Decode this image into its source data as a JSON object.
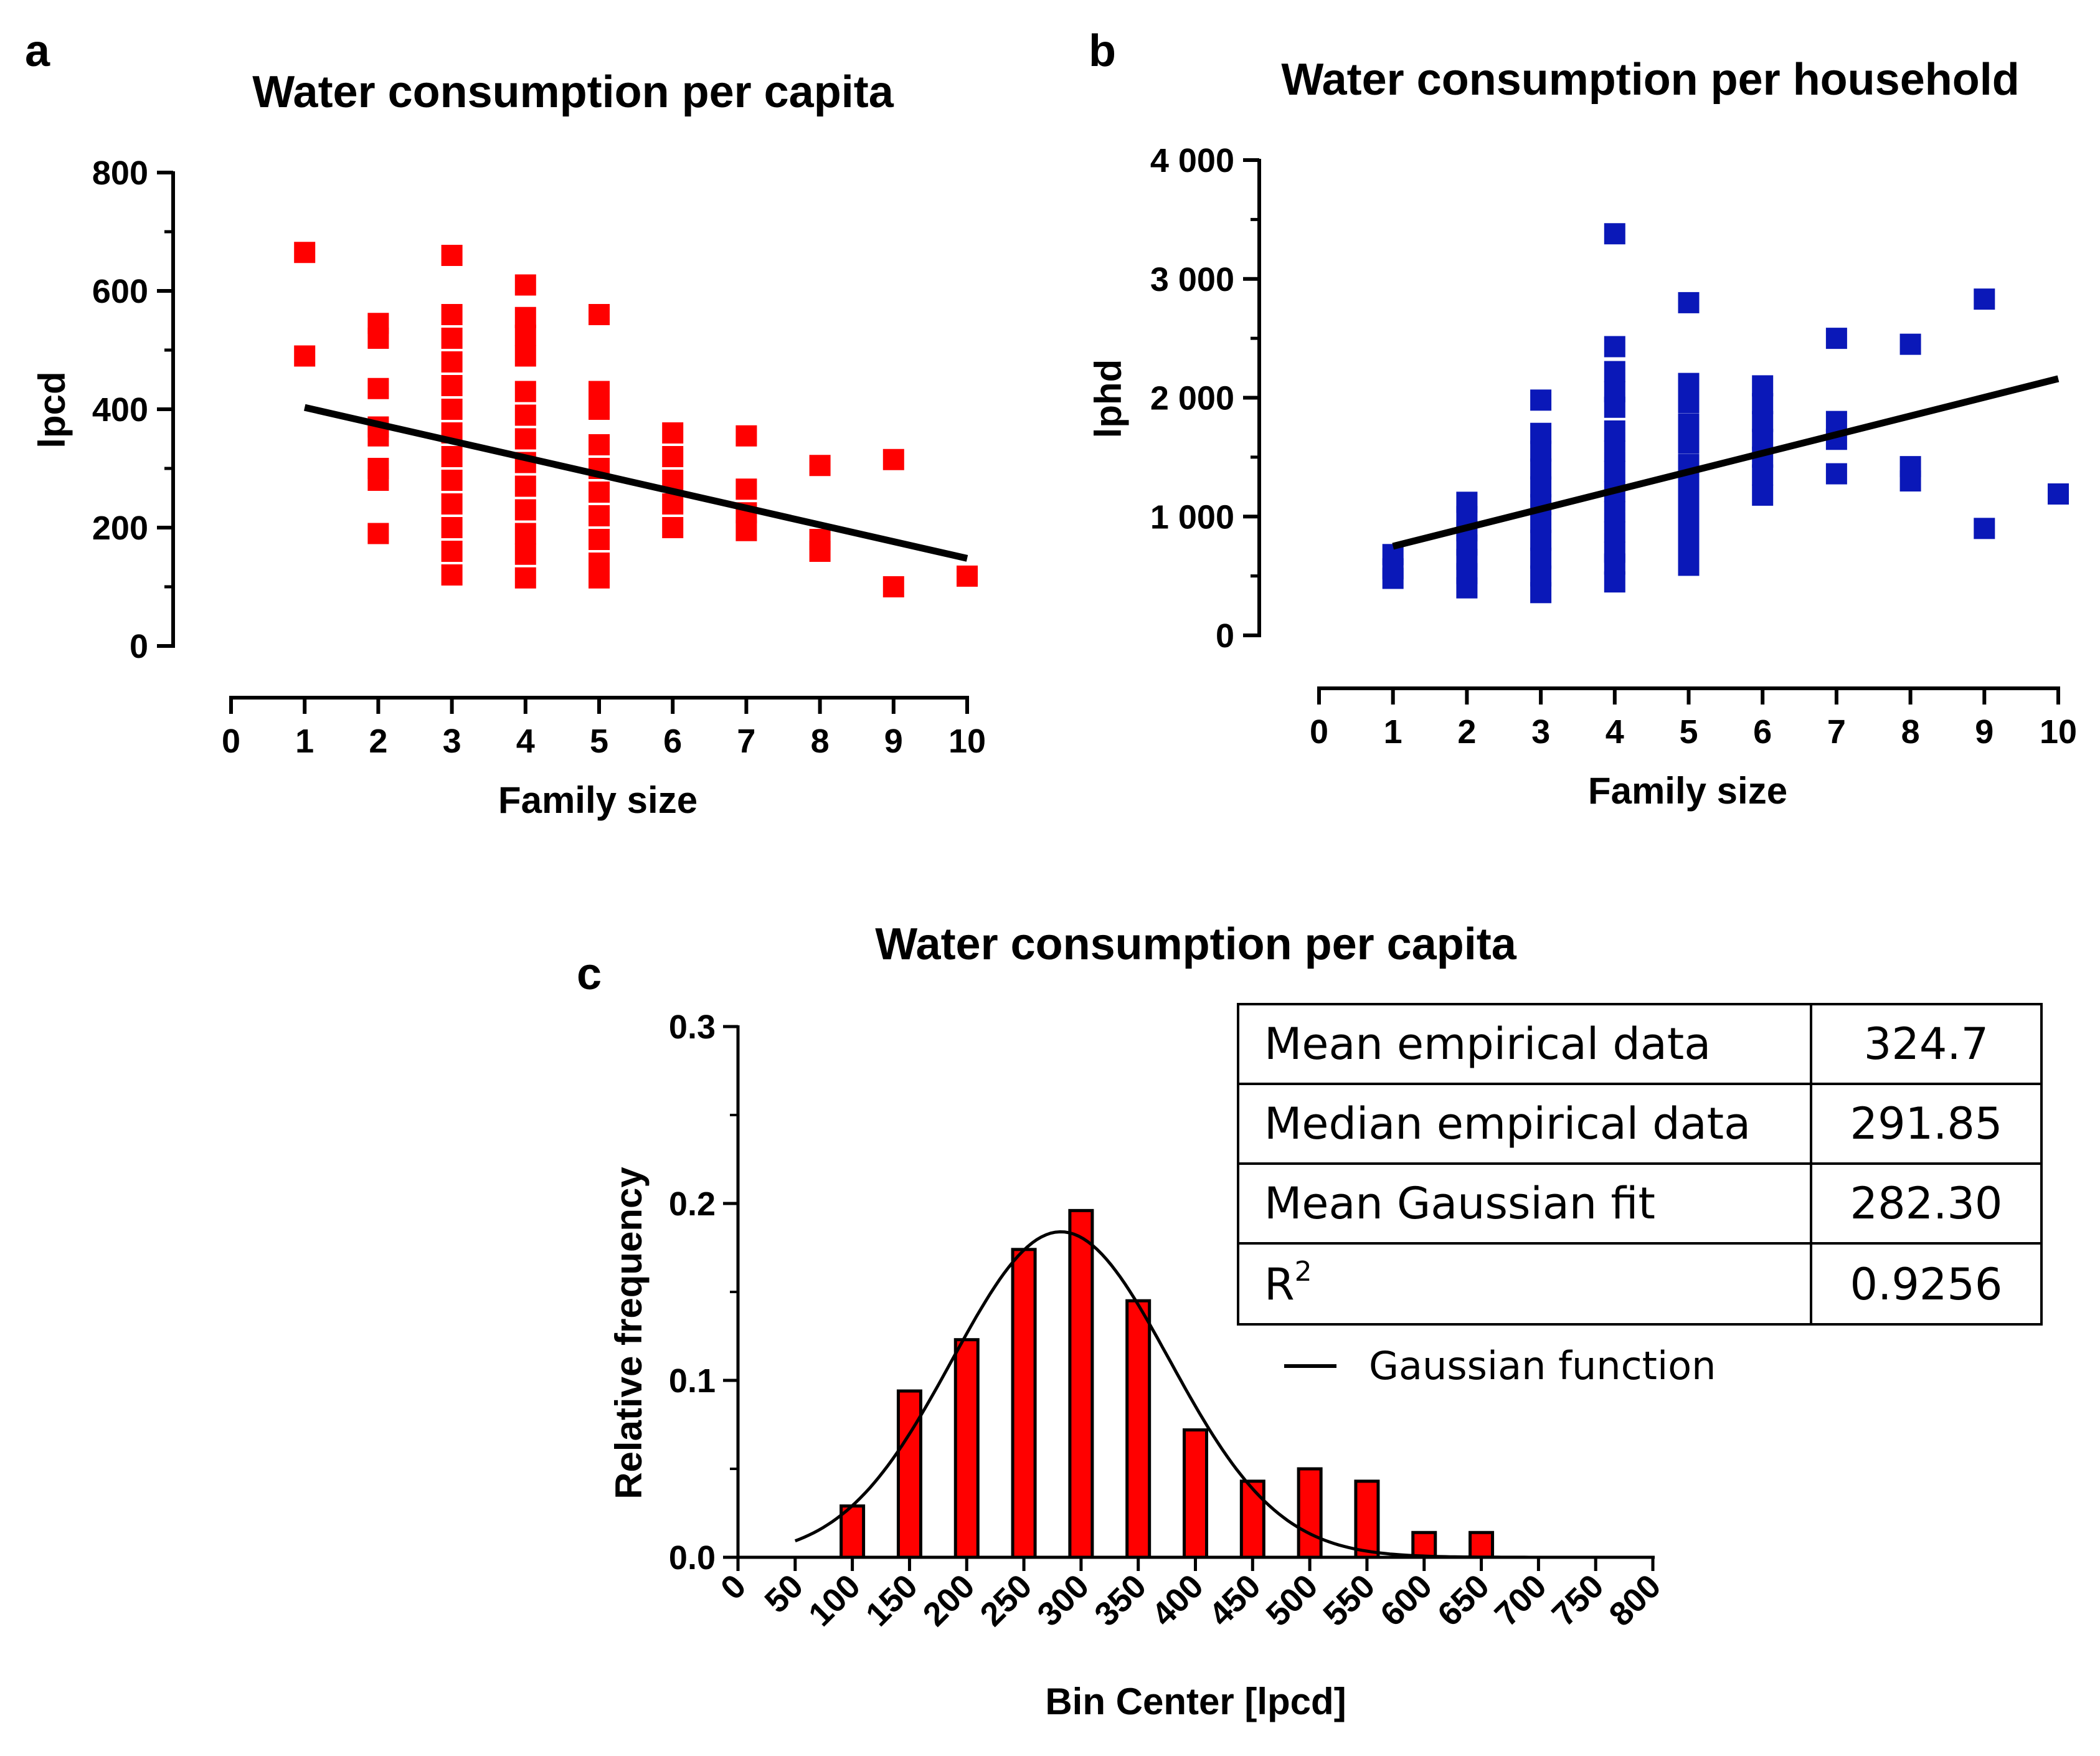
{
  "colors": {
    "red": "#ff0000",
    "blue": "#0a18b8",
    "black": "#000000",
    "bar_fill": "#ff0000",
    "bar_stroke": "#000000"
  },
  "chart_data": [
    {
      "id": "a",
      "panel_letter": "a",
      "type": "scatter",
      "title": "Water consumption per capita",
      "xlabel": "Family size",
      "ylabel": "lpcd",
      "xlim": [
        0,
        10
      ],
      "ylim": [
        0,
        800
      ],
      "x_ticks": [
        "0",
        "1",
        "2",
        "3",
        "4",
        "5",
        "6",
        "7",
        "8",
        "9",
        "10"
      ],
      "y_ticks": [
        {
          "value": 0,
          "label": "0"
        },
        {
          "value": 200,
          "label": "200"
        },
        {
          "value": 400,
          "label": "400"
        },
        {
          "value": 600,
          "label": "600"
        },
        {
          "value": 800,
          "label": "800"
        }
      ],
      "color": "#ff0000",
      "points": [
        [
          1,
          665
        ],
        [
          1,
          490
        ],
        [
          2,
          545
        ],
        [
          2,
          520
        ],
        [
          2,
          435
        ],
        [
          2,
          370
        ],
        [
          2,
          355
        ],
        [
          2,
          300
        ],
        [
          2,
          280
        ],
        [
          2,
          190
        ],
        [
          3,
          660
        ],
        [
          3,
          560
        ],
        [
          3,
          520
        ],
        [
          3,
          480
        ],
        [
          3,
          440
        ],
        [
          3,
          400
        ],
        [
          3,
          360
        ],
        [
          3,
          320
        ],
        [
          3,
          280
        ],
        [
          3,
          240
        ],
        [
          3,
          200
        ],
        [
          3,
          160
        ],
        [
          3,
          120
        ],
        [
          4,
          610
        ],
        [
          4,
          555
        ],
        [
          4,
          525
        ],
        [
          4,
          490
        ],
        [
          4,
          430
        ],
        [
          4,
          390
        ],
        [
          4,
          350
        ],
        [
          4,
          310
        ],
        [
          4,
          270
        ],
        [
          4,
          230
        ],
        [
          4,
          190
        ],
        [
          4,
          155
        ],
        [
          4,
          115
        ],
        [
          5,
          560
        ],
        [
          5,
          430
        ],
        [
          5,
          400
        ],
        [
          5,
          340
        ],
        [
          5,
          300
        ],
        [
          5,
          260
        ],
        [
          5,
          220
        ],
        [
          5,
          180
        ],
        [
          5,
          140
        ],
        [
          5,
          115
        ],
        [
          6,
          360
        ],
        [
          6,
          320
        ],
        [
          6,
          280
        ],
        [
          6,
          240
        ],
        [
          6,
          200
        ],
        [
          7,
          355
        ],
        [
          7,
          265
        ],
        [
          7,
          225
        ],
        [
          7,
          195
        ],
        [
          8,
          305
        ],
        [
          8,
          180
        ],
        [
          8,
          160
        ],
        [
          9,
          315
        ],
        [
          9,
          100
        ],
        [
          10,
          118
        ]
      ],
      "trend": {
        "x": [
          1,
          10
        ],
        "y": [
          403,
          148
        ]
      }
    },
    {
      "id": "b",
      "panel_letter": "b",
      "type": "scatter",
      "title": "Water consumption per household",
      "xlabel": "Family size",
      "ylabel": "lphd",
      "xlim": [
        0,
        10
      ],
      "ylim": [
        0,
        4000
      ],
      "x_ticks": [
        "0",
        "1",
        "2",
        "3",
        "4",
        "5",
        "6",
        "7",
        "8",
        "9",
        "10"
      ],
      "y_ticks": [
        {
          "value": 0,
          "label": "0"
        },
        {
          "value": 1000,
          "label": "1 000"
        },
        {
          "value": 2000,
          "label": "2 000"
        },
        {
          "value": 3000,
          "label": "3 000"
        },
        {
          "value": 4000,
          "label": "4 000"
        }
      ],
      "color": "#0a18b8",
      "points": [
        [
          1,
          680
        ],
        [
          1,
          560
        ],
        [
          1,
          480
        ],
        [
          2,
          1120
        ],
        [
          2,
          1000
        ],
        [
          2,
          880
        ],
        [
          2,
          760
        ],
        [
          2,
          640
        ],
        [
          2,
          520
        ],
        [
          2,
          400
        ],
        [
          3,
          1980
        ],
        [
          3,
          1700
        ],
        [
          3,
          1550
        ],
        [
          3,
          1400
        ],
        [
          3,
          1250
        ],
        [
          3,
          1100
        ],
        [
          3,
          950
        ],
        [
          3,
          800
        ],
        [
          3,
          650
        ],
        [
          3,
          500
        ],
        [
          3,
          360
        ],
        [
          4,
          3380
        ],
        [
          4,
          2430
        ],
        [
          4,
          2220
        ],
        [
          4,
          2050
        ],
        [
          4,
          1920
        ],
        [
          4,
          1720
        ],
        [
          4,
          1550
        ],
        [
          4,
          1380
        ],
        [
          4,
          1210
        ],
        [
          4,
          1040
        ],
        [
          4,
          870
        ],
        [
          4,
          700
        ],
        [
          4,
          600
        ],
        [
          4,
          450
        ],
        [
          5,
          2800
        ],
        [
          5,
          2120
        ],
        [
          5,
          1960
        ],
        [
          5,
          1780
        ],
        [
          5,
          1620
        ],
        [
          5,
          1440
        ],
        [
          5,
          1270
        ],
        [
          5,
          1100
        ],
        [
          5,
          930
        ],
        [
          5,
          760
        ],
        [
          5,
          590
        ],
        [
          6,
          2100
        ],
        [
          6,
          1950
        ],
        [
          6,
          1800
        ],
        [
          6,
          1650
        ],
        [
          6,
          1500
        ],
        [
          6,
          1350
        ],
        [
          6,
          1180
        ],
        [
          7,
          2500
        ],
        [
          7,
          1800
        ],
        [
          7,
          1650
        ],
        [
          7,
          1360
        ],
        [
          8,
          2450
        ],
        [
          8,
          1420
        ],
        [
          8,
          1300
        ],
        [
          9,
          2830
        ],
        [
          9,
          900
        ],
        [
          10,
          1190
        ]
      ],
      "trend": {
        "x": [
          1,
          10
        ],
        "y": [
          750,
          2160
        ]
      }
    },
    {
      "id": "c",
      "panel_letter": "c",
      "type": "bar",
      "title": "Water consumption per capita",
      "xlabel": "Bin Center [lpcd]",
      "ylabel": "Relative frequency",
      "xlim": [
        0,
        800
      ],
      "ylim": [
        0,
        0.3
      ],
      "x_ticks": [
        "0",
        "50",
        "100",
        "150",
        "200",
        "250",
        "300",
        "350",
        "400",
        "450",
        "500",
        "550",
        "600",
        "650",
        "700",
        "750",
        "800"
      ],
      "y_ticks": [
        {
          "value": 0,
          "label": "0.0"
        },
        {
          "value": 0.1,
          "label": "0.1"
        },
        {
          "value": 0.2,
          "label": "0.2"
        },
        {
          "value": 0.3,
          "label": "0.3"
        }
      ],
      "bin_centers": [
        100,
        150,
        200,
        250,
        300,
        350,
        400,
        450,
        500,
        550,
        600,
        650
      ],
      "values": [
        0.029,
        0.094,
        0.123,
        0.174,
        0.196,
        0.145,
        0.072,
        0.043,
        0.05,
        0.043,
        0.014,
        0.014
      ],
      "gaussian": {
        "mean": 282.3,
        "sigma": 95,
        "amplitude": 0.184,
        "x_range": [
          50,
          700
        ]
      },
      "legend": {
        "label": "Gaussian function"
      },
      "stats_table": [
        {
          "label": "Mean empirical data",
          "value": "324.7"
        },
        {
          "label": "Median empirical data",
          "value": "291.85"
        },
        {
          "label": "Mean Gaussian fit",
          "value": "282.30"
        },
        {
          "label": "R",
          "sup": "2",
          "value": "0.9256"
        }
      ]
    }
  ]
}
